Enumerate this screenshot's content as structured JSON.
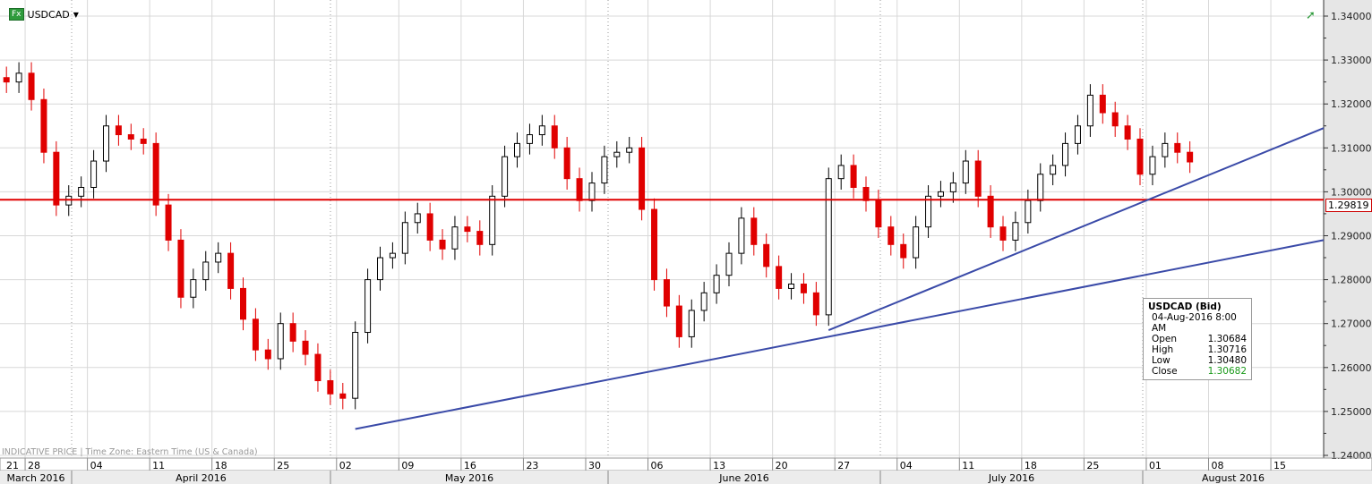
{
  "header": {
    "symbol": "USDCAD",
    "badge": "Fx"
  },
  "footer": {
    "price_type": "INDICATIVE PRICE",
    "timezone": "Time Zone: Eastern Time (US & Canada)"
  },
  "tooltip": {
    "title": "USDCAD (Bid)",
    "datetime": "04-Aug-2016 8:00 AM",
    "open_label": "Open",
    "open": "1.30684",
    "high_label": "High",
    "high": "1.30716",
    "low_label": "Low",
    "low": "1.30480",
    "close_label": "Close",
    "close": "1.30682",
    "close_color": "#1a9a1a"
  },
  "chart_data": {
    "type": "candlestick",
    "symbol": "USDCAD",
    "ylim": [
      1.24,
      1.34
    ],
    "yticks": [
      "1.34000",
      "1.33000",
      "1.32000",
      "1.31000",
      "1.30000",
      "1.29000",
      "1.28000",
      "1.27000",
      "1.26000",
      "1.25000",
      "1.24000"
    ],
    "current_price": "1.29819",
    "horizontal_line": 1.29819,
    "week_labels": [
      "21",
      "28",
      "04",
      "11",
      "18",
      "25",
      "02",
      "09",
      "16",
      "23",
      "30",
      "06",
      "13",
      "20",
      "27",
      "04",
      "11",
      "18",
      "25",
      "01",
      "08",
      "15"
    ],
    "month_labels": [
      "March 2016",
      "April 2016",
      "May 2016",
      "June 2016",
      "July 2016",
      "August 2016"
    ],
    "up_color": "#000000",
    "down_color": "#e00000",
    "line_color": "#3a4aa8",
    "hline_color": "#e00000",
    "trendlines": [
      {
        "from": [
          "2016-05-03",
          1.246
        ],
        "to": [
          "2016-08-22",
          1.289
        ]
      },
      {
        "from": [
          "2016-06-24",
          1.2685
        ],
        "to": [
          "2016-08-22",
          1.3145
        ]
      }
    ],
    "dates_start": "2016-03-24",
    "closes": [
      1.325,
      1.327,
      1.321,
      1.309,
      1.297,
      1.299,
      1.301,
      1.307,
      1.315,
      1.313,
      1.312,
      1.311,
      1.297,
      1.289,
      1.276,
      1.28,
      1.284,
      1.286,
      1.278,
      1.271,
      1.264,
      1.262,
      1.27,
      1.266,
      1.263,
      1.257,
      1.254,
      1.253,
      1.268,
      1.28,
      1.285,
      1.286,
      1.293,
      1.295,
      1.289,
      1.287,
      1.292,
      1.291,
      1.288,
      1.299,
      1.308,
      1.311,
      1.313,
      1.315,
      1.31,
      1.303,
      1.298,
      1.302,
      1.308,
      1.309,
      1.31,
      1.296,
      1.28,
      1.274,
      1.267,
      1.273,
      1.277,
      1.281,
      1.286,
      1.294,
      1.288,
      1.283,
      1.278,
      1.279,
      1.277,
      1.272,
      1.303,
      1.306,
      1.301,
      1.298,
      1.292,
      1.288,
      1.285,
      1.292,
      1.299,
      1.3,
      1.302,
      1.307,
      1.299,
      1.292,
      1.289,
      1.293,
      1.298,
      1.304,
      1.306,
      1.311,
      1.315,
      1.322,
      1.318,
      1.315,
      1.312,
      1.304,
      1.308,
      1.311,
      1.309,
      1.3068
    ]
  }
}
